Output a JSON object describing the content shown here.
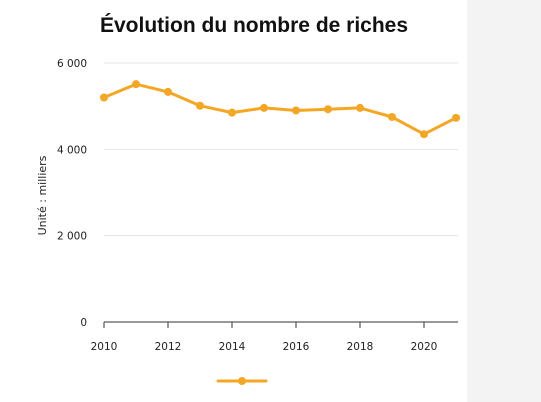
{
  "chart_data": {
    "type": "line",
    "title": "Évolution du nombre de riches",
    "xlabel": "",
    "ylabel": "Unité : milliers",
    "x": [
      2010,
      2011,
      2012,
      2013,
      2014,
      2015,
      2016,
      2017,
      2018,
      2019,
      2020,
      2021
    ],
    "series": [
      {
        "values": [
          5200,
          5510,
          5330,
          5010,
          4850,
          4960,
          4900,
          4930,
          4960,
          4750,
          4350,
          4730
        ]
      }
    ],
    "xlim": [
      2010,
      2021
    ],
    "ylim": [
      0,
      6000
    ],
    "x_ticks": [
      2010,
      2012,
      2014,
      2016,
      2018,
      2020
    ],
    "y_ticks": [
      0,
      2000,
      4000,
      6000
    ],
    "y_tick_labels": [
      "0",
      "2 000",
      "4 000",
      "6 000"
    ],
    "grid": "horizontal",
    "legend": "bottom-center",
    "colors": {
      "series": "#f5a623",
      "grid": "#e6e6e6",
      "axis": "#333333"
    }
  }
}
